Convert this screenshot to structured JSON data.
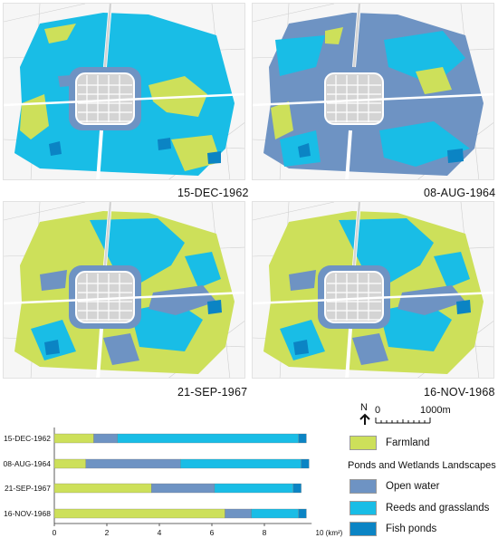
{
  "maps": [
    {
      "date": "15-DEC-1962",
      "base": "reeds"
    },
    {
      "date": "08-AUG-1964",
      "base": "open_water"
    },
    {
      "date": "21-SEP-1967",
      "base": "farmland"
    },
    {
      "date": "16-NOV-1968",
      "base": "farmland"
    }
  ],
  "legend": {
    "north_label": "N",
    "scale_start": "0",
    "scale_end": "1000m",
    "farmland": "Farmland",
    "group_title": "Ponds and Wetlands Landscapes",
    "open_water": "Open water",
    "reeds": "Reeds and grasslands",
    "fish_ponds": "Fish ponds"
  },
  "colors": {
    "farmland": "#cde05a",
    "open_water": "#6e93c3",
    "reeds": "#19bde6",
    "fish_ponds": "#0b84c4",
    "city": "#d4d4d4",
    "background": "#f6f6f6"
  },
  "chart_data": {
    "type": "bar",
    "orientation": "horizontal",
    "stacked": true,
    "categories": [
      "15-DEC-1962",
      "08-AUG-1964",
      "21-SEP-1967",
      "16-NOV-1968"
    ],
    "series": [
      {
        "name": "Farmland",
        "values": [
          1.5,
          1.2,
          3.7,
          6.5
        ]
      },
      {
        "name": "Open water",
        "values": [
          0.9,
          3.6,
          2.4,
          1.0
        ]
      },
      {
        "name": "Reeds and grasslands",
        "values": [
          6.9,
          4.6,
          3.0,
          1.8
        ]
      },
      {
        "name": "Fish ponds",
        "values": [
          0.3,
          0.3,
          0.3,
          0.3
        ]
      }
    ],
    "x_ticks": [
      "0",
      "2",
      "4",
      "6",
      "8"
    ],
    "x_unit_label": "10 (km²)",
    "xlim": [
      0,
      10
    ]
  }
}
